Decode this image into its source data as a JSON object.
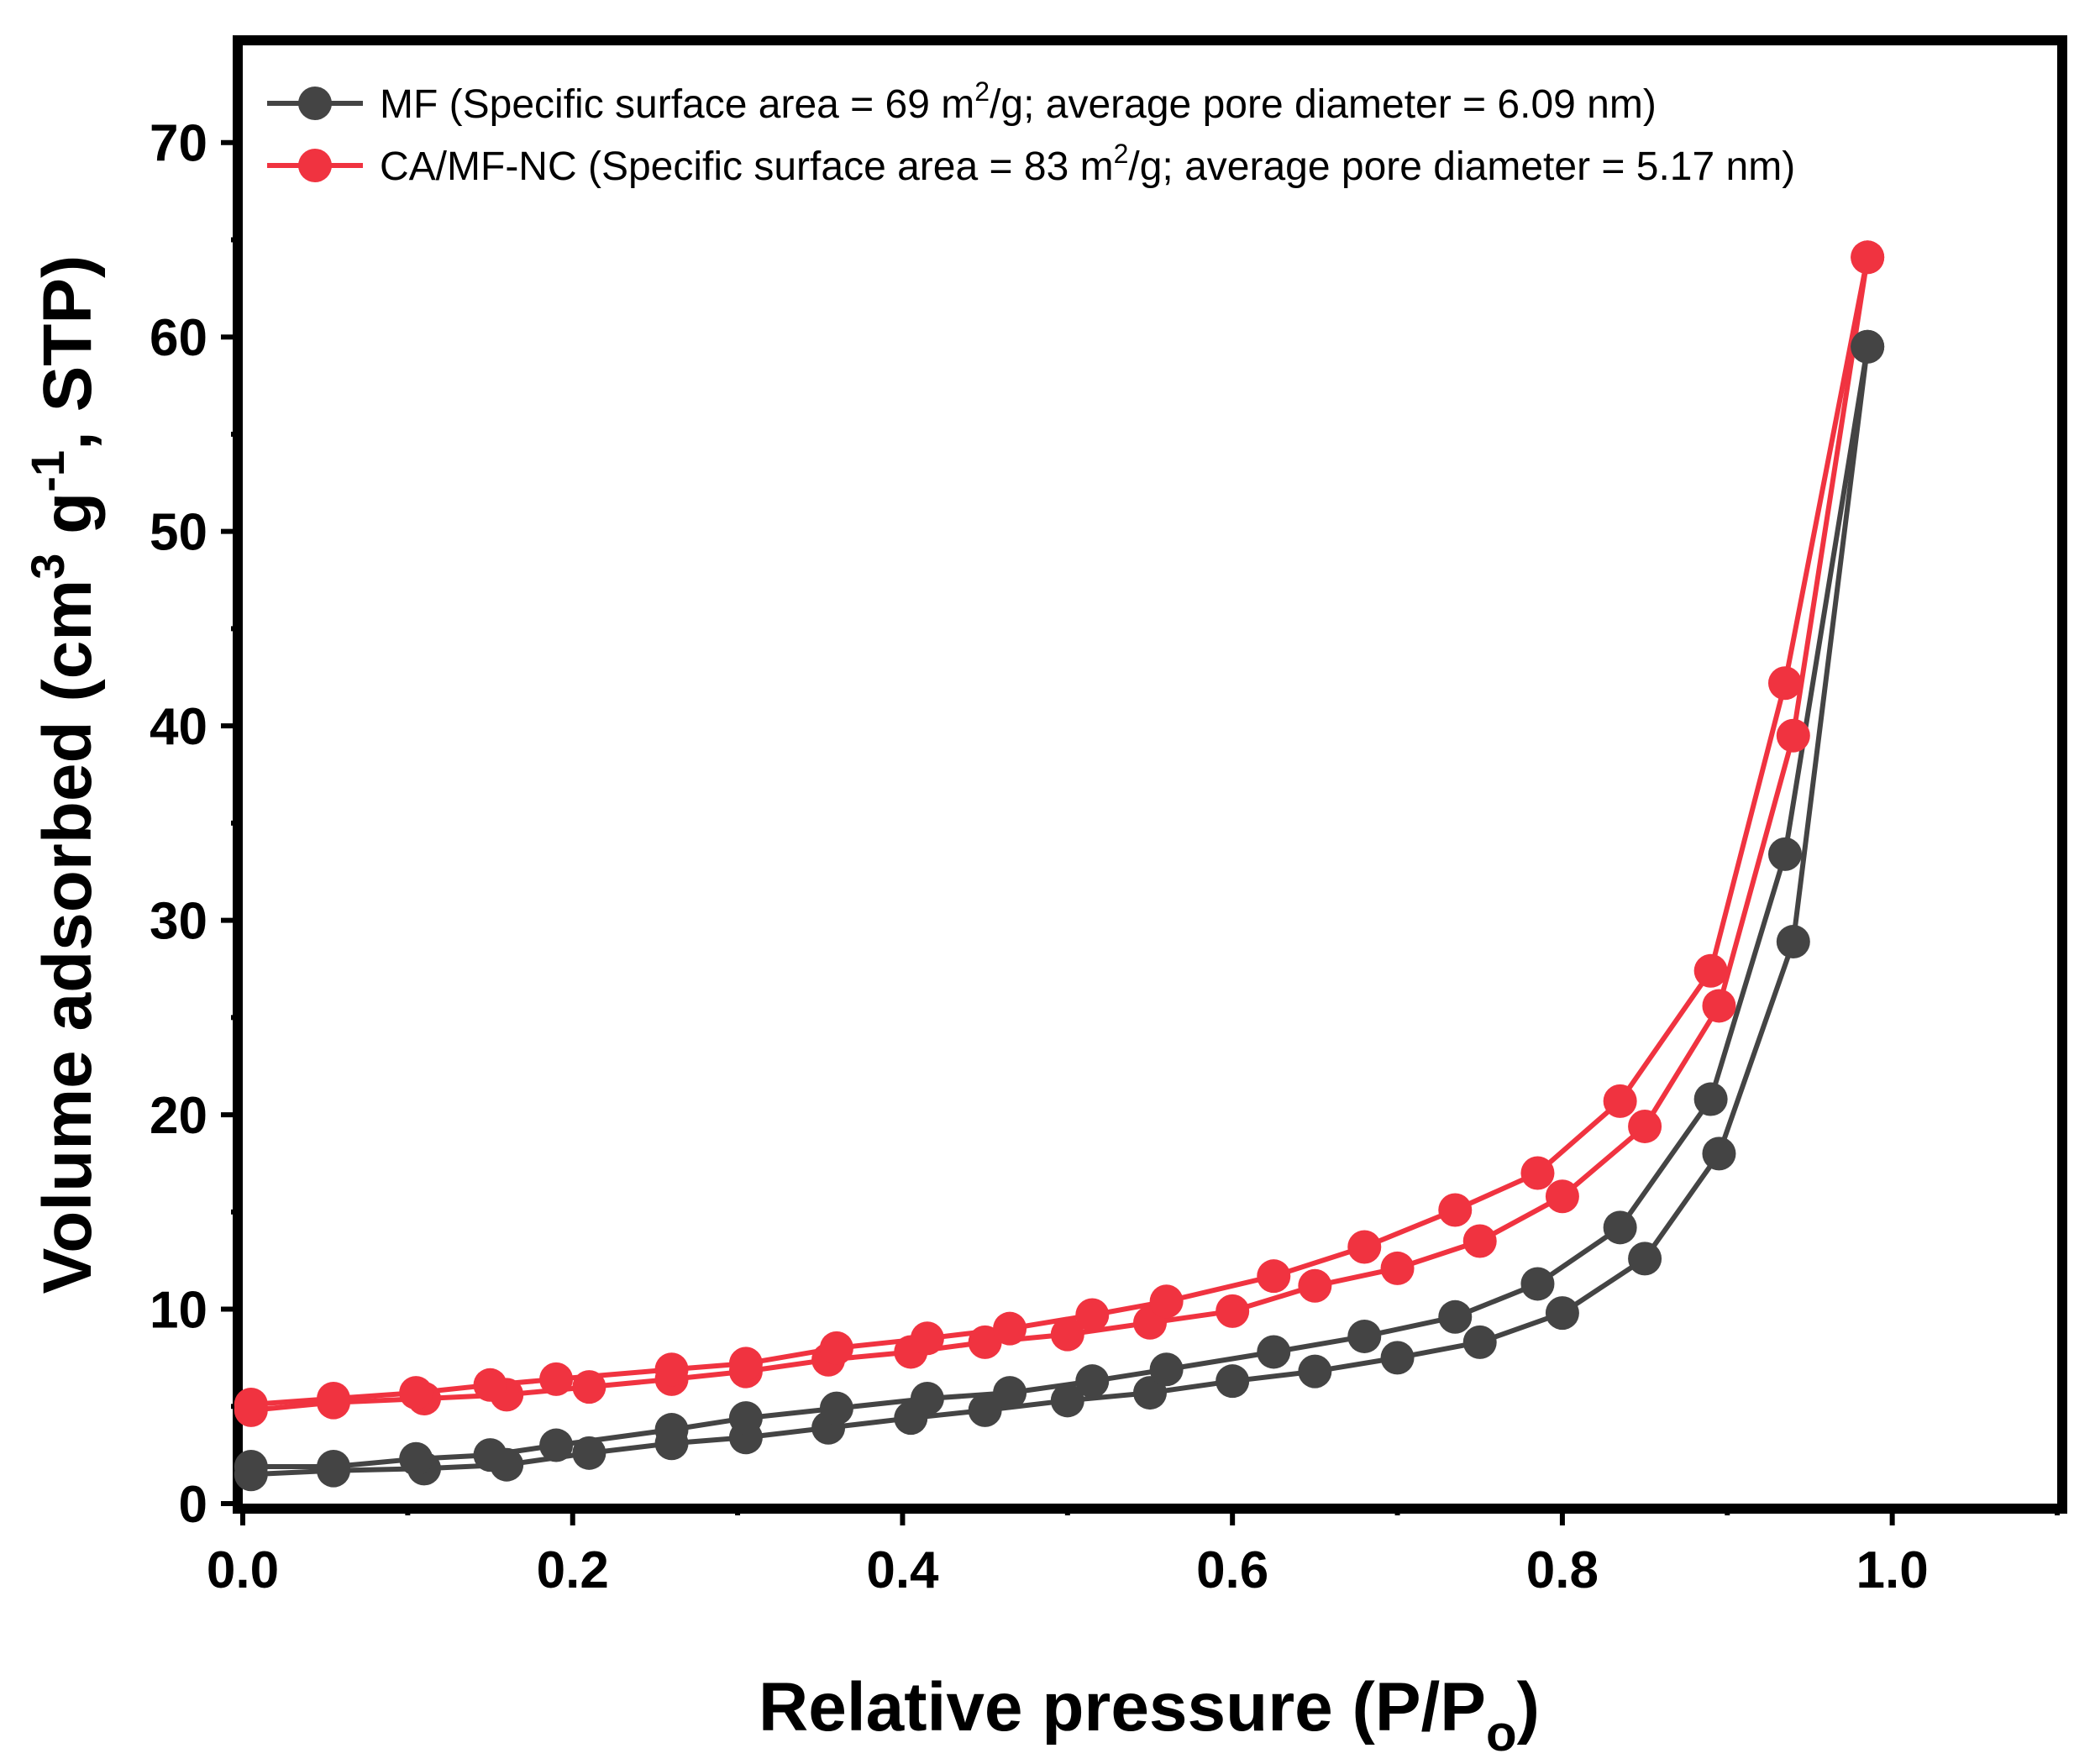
{
  "chart_data": {
    "type": "line",
    "xlabel": "Relative pressure (P/P",
    "xlabel_sub": "o",
    "xlabel_end": ")",
    "ylabel": "Volume adsorbed (cm",
    "ylabel_sup1": "3",
    "ylabel_mid": " g",
    "ylabel_sup2": "-1",
    "ylabel_end": ", STP)",
    "xlim": [
      0.0,
      1.1
    ],
    "ylim": [
      0,
      75
    ],
    "xticks": [
      0.0,
      0.2,
      0.4,
      0.6,
      0.8,
      1.0
    ],
    "xtick_labels": [
      "0.0",
      "0.2",
      "0.4",
      "0.6",
      "0.8",
      "1.0"
    ],
    "yticks": [
      0,
      10,
      20,
      30,
      40,
      50,
      60,
      70
    ],
    "ytick_labels": [
      "0",
      "10",
      "20",
      "30",
      "40",
      "50",
      "60",
      "70"
    ],
    "legend_position": "top-left",
    "series": [
      {
        "name": "MF",
        "legend_pre": "MF (Specific surface area = 69 m",
        "legend_sup": "2",
        "legend_post": "/g; average pore diameter = 6.09 nm)",
        "color": "#444444",
        "adsorption": {
          "x": [
            0.005,
            0.055,
            0.11,
            0.16,
            0.21,
            0.26,
            0.305,
            0.355,
            0.405,
            0.45,
            0.5,
            0.55,
            0.6,
            0.65,
            0.7,
            0.75,
            0.8,
            0.85,
            0.895,
            0.94,
            0.985
          ],
          "y": [
            1.5,
            1.7,
            1.8,
            2.0,
            2.6,
            3.1,
            3.4,
            3.9,
            4.4,
            4.8,
            5.3,
            5.7,
            6.3,
            6.8,
            7.5,
            8.3,
            9.8,
            12.6,
            18.0,
            28.9,
            59.5
          ]
        },
        "desorption": {
          "x": [
            0.005,
            0.055,
            0.105,
            0.15,
            0.19,
            0.26,
            0.305,
            0.36,
            0.415,
            0.465,
            0.515,
            0.56,
            0.625,
            0.68,
            0.735,
            0.785,
            0.835,
            0.89,
            0.935,
            0.985
          ],
          "y": [
            1.9,
            1.9,
            2.3,
            2.5,
            3.0,
            3.8,
            4.4,
            4.9,
            5.4,
            5.7,
            6.3,
            6.9,
            7.8,
            8.6,
            9.6,
            11.3,
            14.2,
            20.8,
            33.4,
            59.5
          ]
        }
      },
      {
        "name": "CA/MF-NC",
        "legend_pre": "CA/MF-NC (Specific surface area = 83 m",
        "legend_sup": "2",
        "legend_post": "/g; average pore diameter = 5.17 nm)",
        "color": "#f03340",
        "adsorption": {
          "x": [
            0.005,
            0.055,
            0.11,
            0.16,
            0.21,
            0.26,
            0.305,
            0.355,
            0.405,
            0.45,
            0.5,
            0.55,
            0.6,
            0.65,
            0.7,
            0.75,
            0.8,
            0.85,
            0.895,
            0.94,
            0.985
          ],
          "y": [
            4.8,
            5.2,
            5.4,
            5.6,
            6.0,
            6.4,
            6.8,
            7.4,
            7.8,
            8.3,
            8.7,
            9.3,
            9.9,
            11.2,
            12.1,
            13.5,
            15.8,
            19.4,
            25.6,
            39.5,
            64.1
          ]
        },
        "desorption": {
          "x": [
            0.005,
            0.055,
            0.105,
            0.15,
            0.19,
            0.26,
            0.305,
            0.36,
            0.415,
            0.465,
            0.515,
            0.56,
            0.625,
            0.68,
            0.735,
            0.785,
            0.835,
            0.89,
            0.935,
            0.985
          ],
          "y": [
            5.1,
            5.4,
            5.7,
            6.1,
            6.4,
            6.9,
            7.2,
            8.0,
            8.5,
            9.0,
            9.7,
            10.4,
            11.7,
            13.2,
            15.1,
            17.0,
            20.7,
            27.4,
            42.2,
            64.1
          ]
        }
      }
    ]
  }
}
